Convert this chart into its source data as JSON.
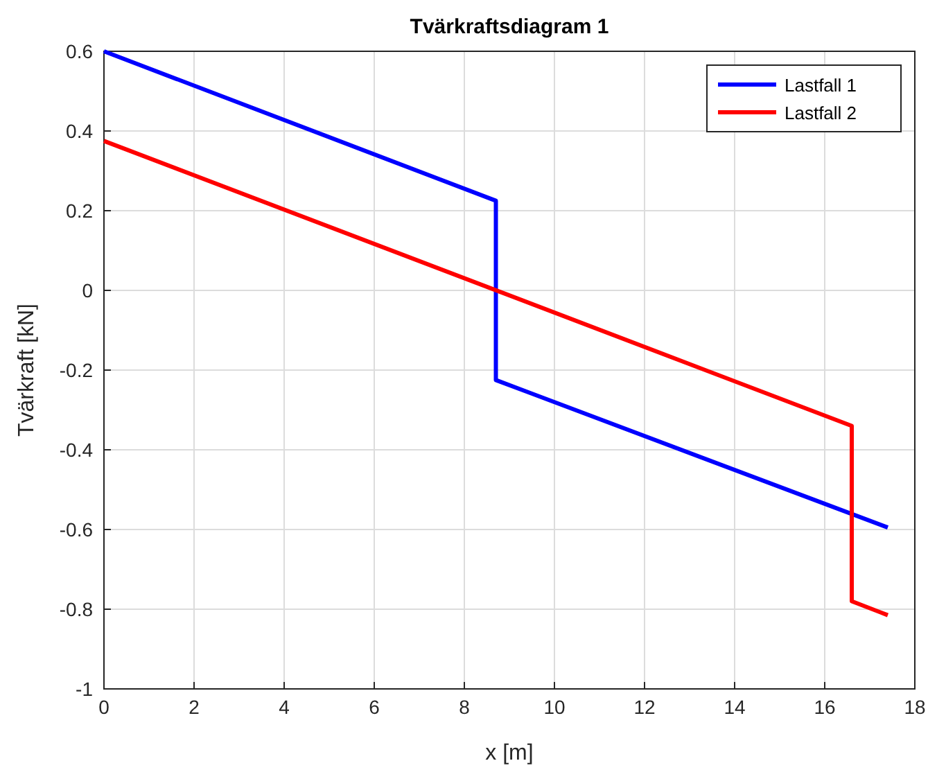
{
  "chart_data": {
    "type": "line",
    "title": "Tvärkraftsdiagram 1",
    "xlabel": "x [m]",
    "ylabel": "Tvärkraft [kN]",
    "series": [
      {
        "name": "Lastfall 1",
        "color": "#0000ff",
        "x": [
          0,
          8.7,
          8.7,
          17.4
        ],
        "values": [
          0.6,
          0.225,
          -0.225,
          -0.595
        ]
      },
      {
        "name": "Lastfall 2",
        "color": "#ff0000",
        "x": [
          0,
          16.6,
          16.6,
          17.4
        ],
        "values": [
          0.375,
          -0.34,
          -0.78,
          -0.815
        ]
      }
    ],
    "xlim": [
      0,
      18
    ],
    "xticks": [
      0,
      2,
      4,
      6,
      8,
      10,
      12,
      14,
      16,
      18
    ],
    "ylim": [
      -1,
      0.6
    ],
    "yticks": [
      -1,
      -0.8,
      -0.6,
      -0.4,
      -0.2,
      0,
      0.2,
      0.4,
      0.6
    ],
    "grid": true,
    "legend": "top right",
    "marker": "none",
    "line_style": "solid"
  }
}
